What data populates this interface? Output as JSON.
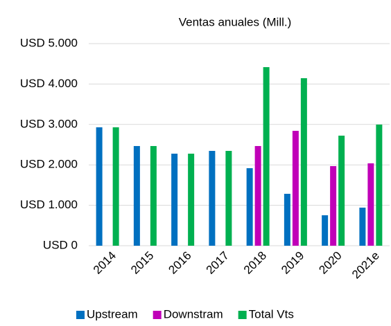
{
  "chart_data": {
    "type": "bar",
    "title": "Ventas anuales (Mill.)",
    "categories": [
      "2014",
      "2015",
      "2016",
      "2017",
      "2018",
      "2019",
      "2020",
      "2021e"
    ],
    "series": [
      {
        "name": "Upstream",
        "color": "#0070c0",
        "values": [
          2930,
          2466,
          2277,
          2346,
          1918,
          1284,
          753,
          942
        ]
      },
      {
        "name": "Downstram",
        "color": "#c000b8",
        "values": [
          0,
          0,
          0,
          0,
          2466,
          2842,
          1969,
          2038
        ]
      },
      {
        "name": "Total Vts",
        "color": "#00b050",
        "values": [
          2930,
          2466,
          2277,
          2346,
          4418,
          4144,
          2723,
          2997
        ]
      }
    ],
    "ylim": [
      0,
      5000
    ],
    "yticks": [
      {
        "value": 0,
        "label": "USD 0"
      },
      {
        "value": 1000,
        "label": "USD 1.000"
      },
      {
        "value": 2000,
        "label": "USD 2.000"
      },
      {
        "value": 3000,
        "label": "USD 3.000"
      },
      {
        "value": 4000,
        "label": "USD 4.000"
      },
      {
        "value": 5000,
        "label": "USD 5.000"
      }
    ],
    "grid": true,
    "legend": "bottom"
  }
}
